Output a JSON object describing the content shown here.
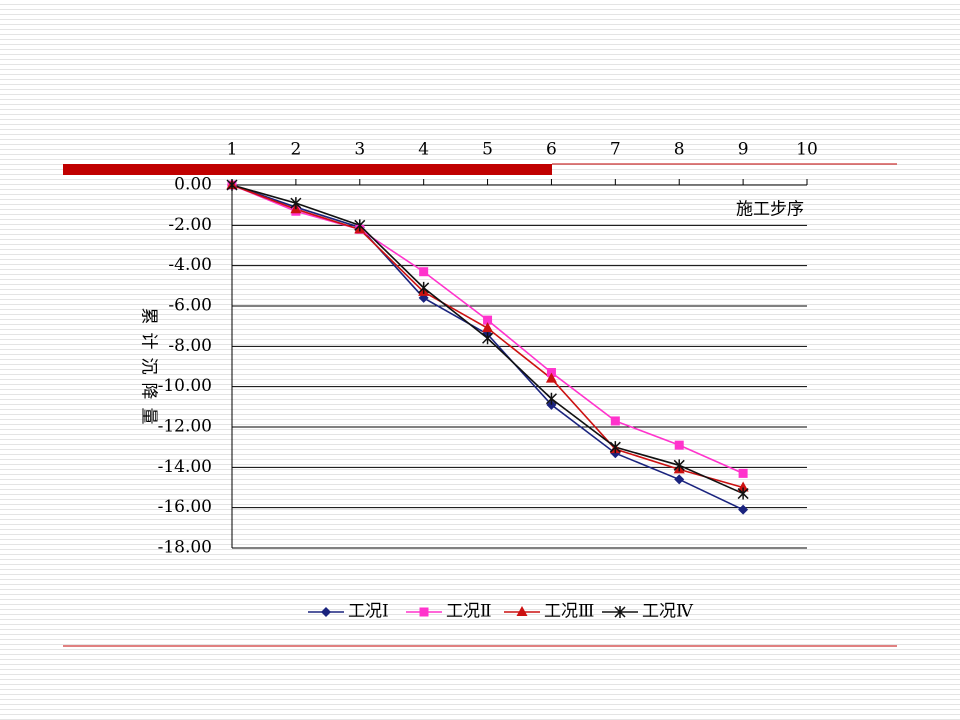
{
  "chart_data": {
    "type": "line",
    "x_label": "施工步序",
    "y_label": "累计沉降量",
    "x": [
      1,
      2,
      3,
      4,
      5,
      6,
      7,
      8,
      9
    ],
    "xlim": [
      1,
      10
    ],
    "xticks": [
      1,
      2,
      3,
      4,
      5,
      6,
      7,
      8,
      9,
      10
    ],
    "ylim": [
      -18,
      0
    ],
    "yticks": [
      {
        "value": 0,
        "label": "0.00"
      },
      {
        "value": -2,
        "label": "-2.00"
      },
      {
        "value": -4,
        "label": "-4.00"
      },
      {
        "value": -6,
        "label": "-6.00"
      },
      {
        "value": -8,
        "label": "-8.00"
      },
      {
        "value": -10,
        "label": "-10.00"
      },
      {
        "value": -12,
        "label": "-12.00"
      },
      {
        "value": -14,
        "label": "-14.00"
      },
      {
        "value": -16,
        "label": "-16.00"
      },
      {
        "value": -18,
        "label": "-18.00"
      }
    ],
    "grid": true,
    "legend": "bottom",
    "series": [
      {
        "name": "工况Ⅰ",
        "color": "#1a237e",
        "marker": "diamond",
        "values": [
          0,
          -1.1,
          -2.1,
          -5.6,
          -7.4,
          -10.9,
          -13.3,
          -14.6,
          -16.1
        ]
      },
      {
        "name": "工况Ⅱ",
        "color": "#ff33cc",
        "marker": "square",
        "values": [
          0,
          -1.3,
          -2.2,
          -4.3,
          -6.7,
          -9.3,
          -11.7,
          -12.9,
          -14.3
        ]
      },
      {
        "name": "工况Ⅲ",
        "color": "#cc1111",
        "marker": "triangle",
        "values": [
          0,
          -1.2,
          -2.2,
          -5.3,
          -7.1,
          -9.6,
          -13.1,
          -14.1,
          -15.0
        ]
      },
      {
        "name": "工况Ⅳ",
        "color": "#111111",
        "marker": "star",
        "values": [
          0,
          -0.9,
          -2.0,
          -5.1,
          -7.6,
          -10.6,
          -13.0,
          -13.9,
          -15.3
        ]
      }
    ]
  }
}
